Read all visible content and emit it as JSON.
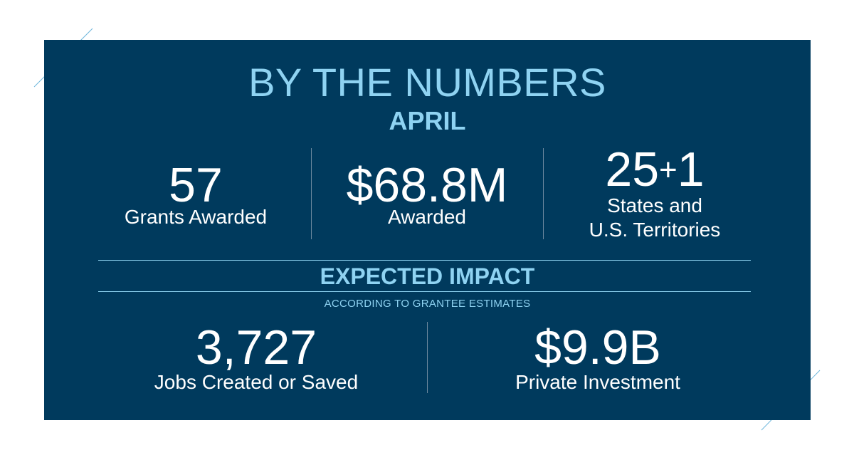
{
  "header": {
    "title": "BY THE NUMBERS",
    "month": "APRIL"
  },
  "stats": [
    {
      "value": "57",
      "label": "Grants Awarded"
    },
    {
      "value": "$68.8M",
      "label": "Awarded"
    },
    {
      "value_main": "25",
      "value_plus": "+",
      "value_extra": "1",
      "label_line1": "States and",
      "label_line2": "U.S. Territories"
    }
  ],
  "impact": {
    "heading": "EXPECTED IMPACT",
    "note": "ACCORDING TO GRANTEE ESTIMATES",
    "items": [
      {
        "value": "3,727",
        "label": "Jobs Created or Saved"
      },
      {
        "value": "$9.9B",
        "label": "Private Investment"
      }
    ]
  },
  "colors": {
    "background": "#003a5d",
    "accent": "#8fd3f2",
    "text": "#ffffff"
  }
}
